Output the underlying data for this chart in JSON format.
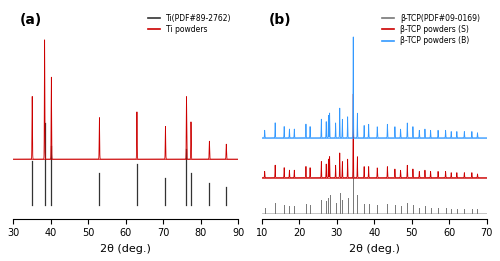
{
  "panel_a": {
    "label": "(a)",
    "xlim": [
      30,
      90
    ],
    "xlabel": "2θ (deg.)",
    "ti_pdf_color": "#333333",
    "ti_powder_color": "#cc0000",
    "ti_pdf_label": "Ti(PDF#89-2762)",
    "ti_powder_label": "Ti powders",
    "ti_pdf_peaks": [
      35.1,
      38.4,
      40.2,
      53.0,
      63.0,
      70.6,
      76.2,
      77.4,
      82.3,
      86.8
    ],
    "ti_pdf_heights": [
      0.3,
      0.55,
      0.4,
      0.22,
      0.28,
      0.18,
      0.38,
      0.22,
      0.15,
      0.12
    ],
    "ti_powder_peaks": [
      35.1,
      38.4,
      40.2,
      53.0,
      63.0,
      70.6,
      76.2,
      77.4,
      82.3,
      86.8
    ],
    "ti_powder_heights": [
      0.42,
      0.8,
      0.55,
      0.28,
      0.32,
      0.22,
      0.42,
      0.25,
      0.12,
      0.1
    ],
    "ti_powder_baseline": 0.18,
    "ti_pdf_baseline": -0.13,
    "background_color": "#ffffff"
  },
  "panel_b": {
    "label": "(b)",
    "xlim": [
      10,
      70
    ],
    "xlabel": "2θ (deg.)",
    "tcp_pdf_color": "#777777",
    "tcp_s_color": "#cc0000",
    "tcp_b_color": "#3399ff",
    "tcp_pdf_label": "β-TCP(PDF#09-0169)",
    "tcp_s_label": "β-TCP powders (S)",
    "tcp_b_label": "β-TCP powders (B)",
    "tcp_peaks": [
      10.8,
      13.6,
      16.0,
      17.4,
      18.7,
      21.8,
      22.9,
      25.9,
      27.2,
      27.8,
      28.1,
      29.7,
      30.8,
      31.5,
      32.9,
      34.4,
      35.5,
      37.3,
      38.5,
      40.8,
      43.5,
      45.5,
      47.0,
      48.8,
      50.3,
      52.0,
      53.5,
      55.0,
      57.0,
      59.0,
      60.5,
      62.0,
      64.0,
      66.0,
      67.5
    ],
    "tcp_pdf_heights": [
      0.04,
      0.08,
      0.06,
      0.05,
      0.05,
      0.07,
      0.06,
      0.1,
      0.09,
      0.12,
      0.14,
      0.08,
      0.16,
      0.1,
      0.12,
      0.75,
      0.14,
      0.07,
      0.07,
      0.06,
      0.07,
      0.06,
      0.05,
      0.08,
      0.06,
      0.04,
      0.05,
      0.04,
      0.04,
      0.04,
      0.03,
      0.03,
      0.03,
      0.03,
      0.03
    ],
    "tcp_s_heights": [
      0.05,
      0.1,
      0.08,
      0.06,
      0.06,
      0.09,
      0.08,
      0.13,
      0.11,
      0.15,
      0.17,
      0.1,
      0.2,
      0.13,
      0.15,
      0.68,
      0.17,
      0.09,
      0.09,
      0.08,
      0.09,
      0.07,
      0.06,
      0.1,
      0.07,
      0.05,
      0.06,
      0.05,
      0.05,
      0.05,
      0.04,
      0.04,
      0.04,
      0.04,
      0.03
    ],
    "tcp_b_heights": [
      0.06,
      0.12,
      0.09,
      0.07,
      0.07,
      0.11,
      0.09,
      0.15,
      0.13,
      0.18,
      0.2,
      0.12,
      0.24,
      0.15,
      0.17,
      0.82,
      0.2,
      0.1,
      0.11,
      0.09,
      0.11,
      0.09,
      0.07,
      0.12,
      0.09,
      0.06,
      0.07,
      0.06,
      0.06,
      0.06,
      0.05,
      0.05,
      0.05,
      0.05,
      0.04
    ],
    "tcp_pdf_baseline": 0.0,
    "tcp_s_baseline": 0.28,
    "tcp_b_baseline": 0.6
  }
}
